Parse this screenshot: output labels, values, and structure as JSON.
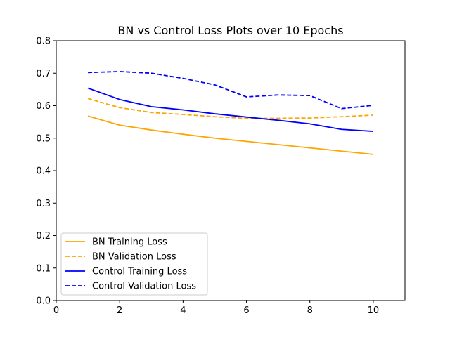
{
  "chart_data": {
    "type": "line",
    "title": "BN vs Control Loss Plots over 10 Epochs",
    "xlabel": "",
    "ylabel": "",
    "xlim": [
      0,
      11
    ],
    "ylim": [
      0,
      0.8
    ],
    "xticks": [
      0,
      2,
      4,
      6,
      8,
      10
    ],
    "yticks": [
      0.0,
      0.1,
      0.2,
      0.3,
      0.4,
      0.5,
      0.6,
      0.7,
      0.8
    ],
    "ytick_labels": [
      "0.0",
      "0.1",
      "0.2",
      "0.3",
      "0.4",
      "0.5",
      "0.6",
      "0.7",
      "0.8"
    ],
    "grid": false,
    "legend_position": "lower-left",
    "x": [
      1,
      2,
      3,
      4,
      5,
      6,
      7,
      8,
      9,
      10
    ],
    "series": [
      {
        "name": "BN Training Loss",
        "color": "#ffa500",
        "dash": "solid",
        "values": [
          0.568,
          0.54,
          0.525,
          0.512,
          0.5,
          0.49,
          0.48,
          0.47,
          0.46,
          0.45
        ]
      },
      {
        "name": "BN Validation Loss",
        "color": "#ffa500",
        "dash": "dashed",
        "values": [
          0.622,
          0.594,
          0.579,
          0.573,
          0.566,
          0.561,
          0.561,
          0.562,
          0.566,
          0.571
        ]
      },
      {
        "name": "Control Training Loss",
        "color": "#0000ff",
        "dash": "solid",
        "values": [
          0.654,
          0.619,
          0.597,
          0.587,
          0.575,
          0.565,
          0.555,
          0.544,
          0.527,
          0.521
        ]
      },
      {
        "name": "Control Validation Loss",
        "color": "#0000ff",
        "dash": "dashed",
        "values": [
          0.702,
          0.705,
          0.7,
          0.684,
          0.664,
          0.627,
          0.633,
          0.631,
          0.591,
          0.601
        ]
      }
    ]
  }
}
